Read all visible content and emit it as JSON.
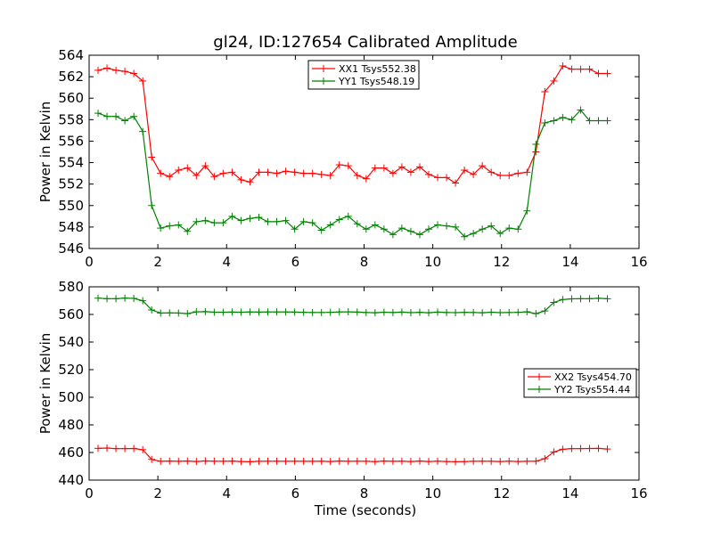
{
  "figure": {
    "title": "gl24, ID:127654 Calibrated Amplitude",
    "xlabel": "Time (seconds)"
  },
  "chart_data": [
    {
      "type": "line",
      "title": "gl24, ID:127654 Calibrated Amplitude",
      "xlabel": "",
      "ylabel": "Power in Kelvin",
      "xlim": [
        0,
        16
      ],
      "ylim": [
        546,
        564
      ],
      "xticks": [
        0,
        2,
        4,
        6,
        8,
        10,
        12,
        14,
        16
      ],
      "yticks": [
        546,
        548,
        550,
        552,
        554,
        556,
        558,
        560,
        562,
        564
      ],
      "grid": false,
      "legend_position": "upper center",
      "x": [
        0.26,
        0.52,
        0.78,
        1.04,
        1.3,
        1.56,
        1.82,
        2.08,
        2.34,
        2.6,
        2.86,
        3.12,
        3.38,
        3.64,
        3.9,
        4.16,
        4.42,
        4.68,
        4.94,
        5.2,
        5.46,
        5.72,
        5.98,
        6.24,
        6.5,
        6.76,
        7.02,
        7.28,
        7.54,
        7.8,
        8.06,
        8.32,
        8.58,
        8.84,
        9.1,
        9.36,
        9.62,
        9.88,
        10.14,
        10.4,
        10.66,
        10.92,
        11.18,
        11.44,
        11.7,
        11.96,
        12.22,
        12.48,
        12.74,
        13.0,
        13.26,
        13.52,
        13.78,
        14.04,
        14.3,
        14.56,
        14.82,
        15.08
      ],
      "series": [
        {
          "name": "XX1 Tsys552.38",
          "color": "#ff0000",
          "values": [
            562.6,
            562.8,
            562.6,
            562.5,
            562.3,
            561.6,
            554.5,
            553.0,
            552.7,
            553.3,
            553.5,
            552.8,
            553.7,
            552.7,
            553.0,
            553.1,
            552.4,
            552.2,
            553.1,
            553.1,
            553.0,
            553.2,
            553.1,
            553.0,
            553.0,
            552.9,
            552.8,
            553.8,
            553.7,
            552.8,
            552.5,
            553.5,
            553.5,
            553.0,
            553.6,
            553.1,
            553.6,
            552.9,
            552.6,
            552.6,
            552.1,
            553.3,
            552.9,
            553.7,
            553.1,
            552.8,
            552.8,
            553.0,
            553.1,
            555.0,
            560.6,
            561.6,
            563.0,
            562.7,
            562.7,
            562.7,
            562.3,
            562.3
          ]
        },
        {
          "name": "YY1 Tsys548.19",
          "color": "#008000",
          "values": [
            558.6,
            558.3,
            558.3,
            557.9,
            558.3,
            556.9,
            550.0,
            547.9,
            548.1,
            548.2,
            547.6,
            548.5,
            548.6,
            548.4,
            548.4,
            549.0,
            548.6,
            548.8,
            548.9,
            548.5,
            548.5,
            548.6,
            547.8,
            548.5,
            548.4,
            547.7,
            548.2,
            548.7,
            549.0,
            548.3,
            547.8,
            548.2,
            547.8,
            547.3,
            547.9,
            547.6,
            547.3,
            547.8,
            548.2,
            548.1,
            548.0,
            547.1,
            547.4,
            547.8,
            548.1,
            547.4,
            547.9,
            547.8,
            549.5,
            555.7,
            557.7,
            557.9,
            558.2,
            558.0,
            558.9,
            557.9,
            557.9,
            557.9
          ]
        }
      ]
    },
    {
      "type": "line",
      "title": "",
      "xlabel": "Time (seconds)",
      "ylabel": "Power in Kelvin",
      "xlim": [
        0,
        16
      ],
      "ylim": [
        440,
        580
      ],
      "xticks": [
        0,
        2,
        4,
        6,
        8,
        10,
        12,
        14,
        16
      ],
      "yticks": [
        440,
        460,
        480,
        500,
        520,
        540,
        560,
        580
      ],
      "grid": false,
      "legend_position": "center right",
      "x": [
        0.26,
        0.52,
        0.78,
        1.04,
        1.3,
        1.56,
        1.82,
        2.08,
        2.34,
        2.6,
        2.86,
        3.12,
        3.38,
        3.64,
        3.9,
        4.16,
        4.42,
        4.68,
        4.94,
        5.2,
        5.46,
        5.72,
        5.98,
        6.24,
        6.5,
        6.76,
        7.02,
        7.28,
        7.54,
        7.8,
        8.06,
        8.32,
        8.58,
        8.84,
        9.1,
        9.36,
        9.62,
        9.88,
        10.14,
        10.4,
        10.66,
        10.92,
        11.18,
        11.44,
        11.7,
        11.96,
        12.22,
        12.48,
        12.74,
        13.0,
        13.26,
        13.52,
        13.78,
        14.04,
        14.3,
        14.56,
        14.82,
        15.08
      ],
      "series": [
        {
          "name": "XX2 Tsys454.70",
          "color": "#ff0000",
          "values": [
            463.0,
            463.2,
            462.8,
            462.8,
            462.9,
            462.0,
            455.0,
            453.6,
            453.8,
            453.6,
            453.8,
            453.5,
            453.9,
            453.7,
            453.6,
            453.8,
            453.5,
            453.3,
            453.6,
            453.7,
            453.7,
            453.6,
            453.7,
            453.6,
            453.6,
            453.7,
            453.5,
            453.8,
            453.6,
            453.7,
            453.6,
            453.4,
            453.8,
            453.6,
            453.7,
            453.5,
            453.8,
            453.5,
            453.7,
            453.5,
            453.3,
            453.4,
            453.6,
            453.7,
            453.6,
            453.5,
            453.7,
            453.5,
            453.6,
            453.7,
            455.5,
            460.4,
            462.3,
            462.8,
            462.8,
            462.9,
            463.0,
            462.5
          ]
        },
        {
          "name": "YY2 Tsys554.44",
          "color": "#008000",
          "values": [
            571.8,
            571.4,
            571.4,
            571.8,
            571.6,
            569.9,
            563.2,
            561.0,
            561.1,
            561.0,
            560.6,
            561.9,
            562.0,
            561.6,
            561.6,
            561.7,
            561.6,
            561.8,
            561.7,
            561.8,
            561.8,
            561.8,
            561.7,
            561.5,
            561.4,
            561.4,
            561.5,
            561.8,
            561.9,
            561.7,
            561.4,
            561.2,
            561.6,
            561.4,
            561.7,
            561.3,
            561.5,
            561.2,
            561.7,
            561.4,
            561.3,
            561.5,
            561.4,
            561.2,
            561.6,
            561.3,
            561.4,
            561.5,
            561.9,
            560.6,
            562.5,
            568.7,
            570.8,
            571.3,
            571.4,
            571.4,
            571.7,
            571.4
          ]
        }
      ]
    }
  ]
}
